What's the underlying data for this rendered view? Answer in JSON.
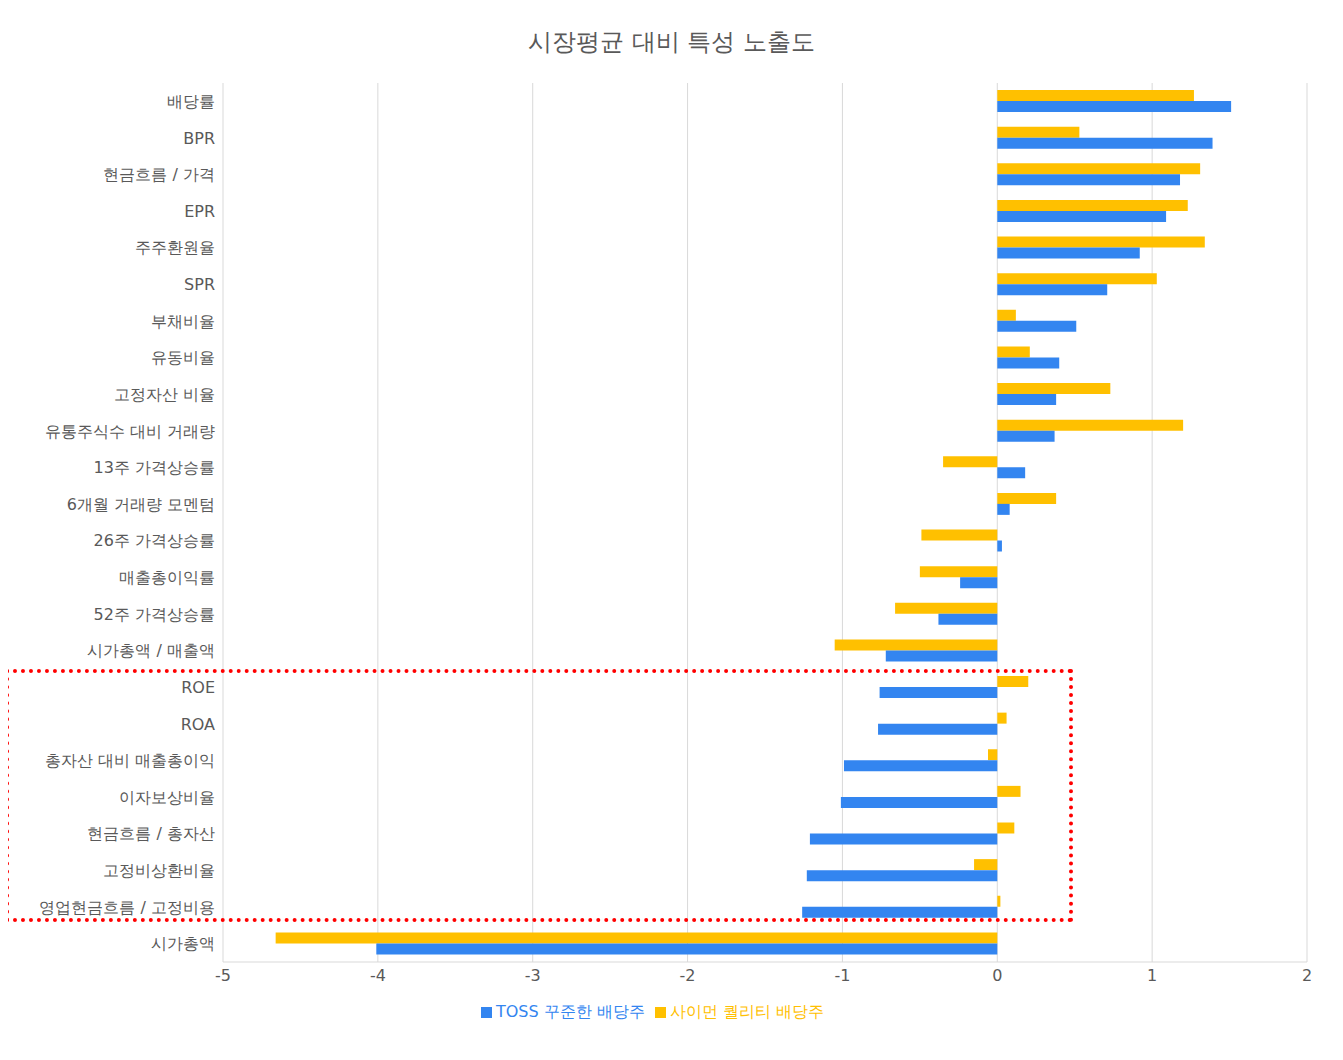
{
  "chart_data": {
    "type": "bar",
    "title": "시장평균 대비 특성 노출도",
    "orientation": "horizontal",
    "grid": true,
    "legend": "bottom",
    "categories": [
      "배당률",
      "BPR",
      "현금흐름 / 가격",
      "EPR",
      "주주환원율",
      "SPR",
      "부채비율",
      "유동비율",
      "고정자산 비율",
      "유통주식수 대비 거래량",
      "13주 가격상승률",
      "6개월 거래량 모멘텀",
      "26주 가격상승률",
      "매출총이익률",
      "52주 가격상승률",
      "시가총액 / 매출액",
      "ROE",
      "ROA",
      "총자산 대비 매출총이익",
      "이자보상비율",
      "현금흐름 / 총자산",
      "고정비상환비율",
      "영업현금흐름 / 고정비용",
      "시가총액"
    ],
    "series": [
      {
        "name": "사이먼 퀄리티 배당주",
        "color": "#ffc000",
        "values": [
          1.27,
          0.53,
          1.31,
          1.23,
          1.34,
          1.03,
          0.12,
          0.21,
          0.73,
          1.2,
          -0.35,
          0.38,
          -0.49,
          -0.5,
          -0.66,
          -1.05,
          0.2,
          0.06,
          -0.06,
          0.15,
          0.11,
          -0.15,
          0.02,
          -4.66
        ]
      },
      {
        "name": "TOSS 꾸준한 배당주",
        "color": "#3385f0",
        "values": [
          1.51,
          1.39,
          1.18,
          1.09,
          0.92,
          0.71,
          0.51,
          0.4,
          0.38,
          0.37,
          0.18,
          0.08,
          0.03,
          -0.24,
          -0.38,
          -0.72,
          -0.76,
          -0.77,
          -0.99,
          -1.01,
          -1.21,
          -1.23,
          -1.26,
          -4.01
        ]
      }
    ],
    "xlim": [
      -5,
      2
    ],
    "xticks": [
      -5,
      -4,
      -3,
      -2,
      -1,
      0,
      1,
      2
    ]
  }
}
